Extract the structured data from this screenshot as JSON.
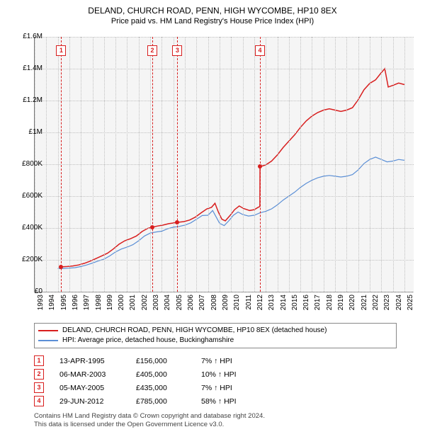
{
  "title": "DELAND, CHURCH ROAD, PENN, HIGH WYCOMBE, HP10 8EX",
  "subtitle": "Price paid vs. HM Land Registry's House Price Index (HPI)",
  "chart": {
    "type": "line",
    "background_color": "#f5f5f5",
    "grid_color": "#c0c0c0",
    "axis_color": "#777777",
    "x_min": 1993.0,
    "x_max": 2025.8,
    "y_min": 0,
    "y_max": 1600000,
    "y_ticks": [
      {
        "v": 0,
        "label": "£0"
      },
      {
        "v": 200000,
        "label": "£200K"
      },
      {
        "v": 400000,
        "label": "£400K"
      },
      {
        "v": 600000,
        "label": "£600K"
      },
      {
        "v": 800000,
        "label": "£800K"
      },
      {
        "v": 1000000,
        "label": "£1M"
      },
      {
        "v": 1200000,
        "label": "£1.2M"
      },
      {
        "v": 1400000,
        "label": "£1.4M"
      },
      {
        "v": 1600000,
        "label": "£1.6M"
      }
    ],
    "x_ticks": [
      1993,
      1994,
      1995,
      1996,
      1997,
      1998,
      1999,
      2000,
      2001,
      2002,
      2003,
      2004,
      2005,
      2006,
      2007,
      2008,
      2009,
      2010,
      2011,
      2012,
      2013,
      2014,
      2015,
      2016,
      2017,
      2018,
      2019,
      2020,
      2021,
      2022,
      2023,
      2024,
      2025
    ],
    "series_hpi": {
      "label": "HPI: Average price, detached house, Buckinghamshire",
      "color": "#5b8fd6",
      "line_width": 1.2,
      "points": [
        [
          1995.0,
          145000
        ],
        [
          1995.5,
          146000
        ],
        [
          1996.0,
          148000
        ],
        [
          1996.5,
          151000
        ],
        [
          1997.0,
          158000
        ],
        [
          1997.5,
          168000
        ],
        [
          1998.0,
          180000
        ],
        [
          1998.5,
          193000
        ],
        [
          1999.0,
          205000
        ],
        [
          1999.5,
          225000
        ],
        [
          2000.0,
          250000
        ],
        [
          2000.5,
          268000
        ],
        [
          2001.0,
          280000
        ],
        [
          2001.5,
          295000
        ],
        [
          2002.0,
          320000
        ],
        [
          2002.5,
          350000
        ],
        [
          2003.0,
          368000
        ],
        [
          2003.5,
          375000
        ],
        [
          2004.0,
          380000
        ],
        [
          2004.5,
          395000
        ],
        [
          2005.0,
          405000
        ],
        [
          2005.5,
          410000
        ],
        [
          2006.0,
          418000
        ],
        [
          2006.5,
          432000
        ],
        [
          2007.0,
          455000
        ],
        [
          2007.5,
          478000
        ],
        [
          2008.0,
          480000
        ],
        [
          2008.4,
          510000
        ],
        [
          2008.7,
          470000
        ],
        [
          2009.0,
          430000
        ],
        [
          2009.4,
          415000
        ],
        [
          2009.8,
          445000
        ],
        [
          2010.2,
          480000
        ],
        [
          2010.6,
          500000
        ],
        [
          2011.0,
          485000
        ],
        [
          2011.5,
          475000
        ],
        [
          2012.0,
          480000
        ],
        [
          2012.5,
          495000
        ],
        [
          2013.0,
          505000
        ],
        [
          2013.5,
          520000
        ],
        [
          2014.0,
          545000
        ],
        [
          2014.5,
          575000
        ],
        [
          2015.0,
          600000
        ],
        [
          2015.5,
          625000
        ],
        [
          2016.0,
          655000
        ],
        [
          2016.5,
          680000
        ],
        [
          2017.0,
          700000
        ],
        [
          2017.5,
          715000
        ],
        [
          2018.0,
          725000
        ],
        [
          2018.5,
          730000
        ],
        [
          2019.0,
          725000
        ],
        [
          2019.5,
          720000
        ],
        [
          2020.0,
          725000
        ],
        [
          2020.5,
          735000
        ],
        [
          2021.0,
          765000
        ],
        [
          2021.5,
          805000
        ],
        [
          2022.0,
          830000
        ],
        [
          2022.5,
          845000
        ],
        [
          2023.0,
          830000
        ],
        [
          2023.5,
          815000
        ],
        [
          2024.0,
          820000
        ],
        [
          2024.5,
          830000
        ],
        [
          2025.0,
          825000
        ]
      ]
    },
    "series_property": {
      "label": "DELAND, CHURCH ROAD, PENN, HIGH WYCOMBE, HP10 8EX (detached house)",
      "color": "#d81e1e",
      "line_width": 1.5,
      "points": [
        [
          1995.29,
          156000
        ],
        [
          1995.8,
          158000
        ],
        [
          1996.3,
          162000
        ],
        [
          1996.8,
          168000
        ],
        [
          1997.3,
          178000
        ],
        [
          1997.8,
          192000
        ],
        [
          1998.3,
          208000
        ],
        [
          1998.8,
          225000
        ],
        [
          1999.3,
          242000
        ],
        [
          1999.8,
          268000
        ],
        [
          2000.3,
          298000
        ],
        [
          2000.8,
          320000
        ],
        [
          2001.3,
          333000
        ],
        [
          2001.8,
          350000
        ],
        [
          2002.3,
          378000
        ],
        [
          2002.8,
          398000
        ],
        [
          2003.18,
          405000
        ],
        [
          2003.6,
          412000
        ],
        [
          2004.1,
          418000
        ],
        [
          2004.6,
          427000
        ],
        [
          2005.35,
          435000
        ],
        [
          2005.9,
          440000
        ],
        [
          2006.4,
          450000
        ],
        [
          2006.9,
          468000
        ],
        [
          2007.4,
          495000
        ],
        [
          2007.9,
          520000
        ],
        [
          2008.3,
          530000
        ],
        [
          2008.6,
          555000
        ],
        [
          2008.9,
          500000
        ],
        [
          2009.2,
          455000
        ],
        [
          2009.5,
          445000
        ],
        [
          2009.9,
          478000
        ],
        [
          2010.3,
          515000
        ],
        [
          2010.7,
          538000
        ],
        [
          2011.1,
          522000
        ],
        [
          2011.6,
          510000
        ],
        [
          2012.0,
          515000
        ],
        [
          2012.3,
          528000
        ],
        [
          2012.49,
          535000
        ],
        [
          2012.5,
          785000
        ],
        [
          2013.0,
          796000
        ],
        [
          2013.5,
          820000
        ],
        [
          2014.0,
          858000
        ],
        [
          2014.5,
          905000
        ],
        [
          2015.0,
          945000
        ],
        [
          2015.5,
          985000
        ],
        [
          2016.0,
          1032000
        ],
        [
          2016.5,
          1072000
        ],
        [
          2017.0,
          1103000
        ],
        [
          2017.5,
          1125000
        ],
        [
          2018.0,
          1140000
        ],
        [
          2018.5,
          1148000
        ],
        [
          2019.0,
          1140000
        ],
        [
          2019.5,
          1132000
        ],
        [
          2020.0,
          1140000
        ],
        [
          2020.5,
          1155000
        ],
        [
          2021.0,
          1205000
        ],
        [
          2021.5,
          1268000
        ],
        [
          2022.0,
          1308000
        ],
        [
          2022.5,
          1330000
        ],
        [
          2023.0,
          1375000
        ],
        [
          2023.3,
          1400000
        ],
        [
          2023.6,
          1285000
        ],
        [
          2024.0,
          1295000
        ],
        [
          2024.5,
          1310000
        ],
        [
          2025.0,
          1300000
        ]
      ]
    },
    "sale_markers": [
      {
        "n": "1",
        "x": 1995.29,
        "y": 156000,
        "color": "#d81e1e"
      },
      {
        "n": "2",
        "x": 2003.18,
        "y": 405000,
        "color": "#d81e1e"
      },
      {
        "n": "3",
        "x": 2005.35,
        "y": 435000,
        "color": "#d81e1e"
      },
      {
        "n": "4",
        "x": 2012.5,
        "y": 785000,
        "color": "#d81e1e"
      }
    ]
  },
  "legend": {
    "items": [
      {
        "color": "#d81e1e",
        "label": "DELAND, CHURCH ROAD, PENN, HIGH WYCOMBE, HP10 8EX (detached house)"
      },
      {
        "color": "#5b8fd6",
        "label": "HPI: Average price, detached house, Buckinghamshire"
      }
    ]
  },
  "sales_table": {
    "rows": [
      {
        "n": "1",
        "date": "13-APR-1995",
        "price": "£156,000",
        "pct": "7% ↑ HPI",
        "color": "#d81e1e"
      },
      {
        "n": "2",
        "date": "06-MAR-2003",
        "price": "£405,000",
        "pct": "10% ↑ HPI",
        "color": "#d81e1e"
      },
      {
        "n": "3",
        "date": "05-MAY-2005",
        "price": "£435,000",
        "pct": "7% ↑ HPI",
        "color": "#d81e1e"
      },
      {
        "n": "4",
        "date": "29-JUN-2012",
        "price": "£785,000",
        "pct": "58% ↑ HPI",
        "color": "#d81e1e"
      }
    ]
  },
  "footer": {
    "line1": "Contains HM Land Registry data © Crown copyright and database right 2024.",
    "line2": "This data is licensed under the Open Government Licence v3.0."
  }
}
